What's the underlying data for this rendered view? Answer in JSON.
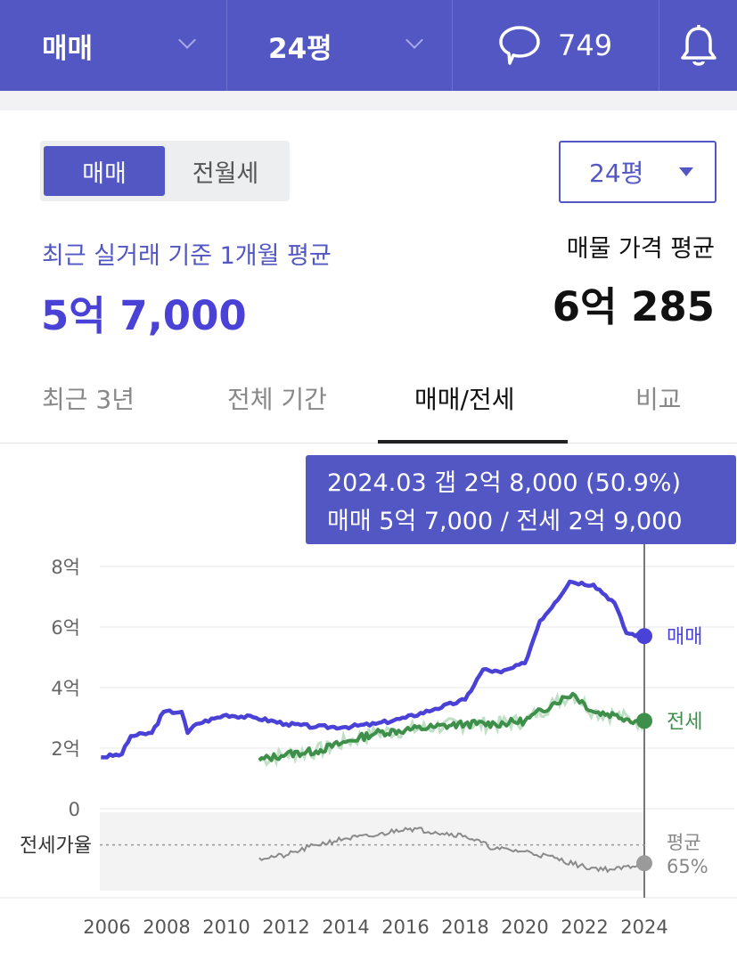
{
  "topbar": {
    "deal_type": "매매",
    "size": "24평",
    "comment_count": "749"
  },
  "segment": {
    "options": [
      "매매",
      "전월세"
    ],
    "selected": "매매"
  },
  "size_select": {
    "value": "24평"
  },
  "summary": {
    "recent_label": "최근 실거래 기준 1개월 평균",
    "recent_value": "5억 7,000",
    "listing_label": "매물 가격 평균",
    "listing_value": "6억 285"
  },
  "tabs": [
    {
      "label": "최근 3년"
    },
    {
      "label": "전체 기간"
    },
    {
      "label": "매매/전세"
    },
    {
      "label": "비교"
    }
  ],
  "tooltip": {
    "line1": "2024.03  갭 2억 8,000 (50.9%)",
    "line2": "매매 5억 7,000 / 전세 2억 9,000"
  },
  "colors": {
    "brand": "#5257c4",
    "sale": "#4a42d6",
    "jeonse": "#3d8f4a",
    "ratio": "#8a8a8a"
  },
  "chart_data": {
    "type": "line",
    "y_unit": "억",
    "ylim": [
      0,
      8
    ],
    "y_ticks": [
      "8억",
      "6억",
      "4억",
      "2억",
      "0"
    ],
    "x_ticks": [
      "2006",
      "2008",
      "2010",
      "2012",
      "2014",
      "2016",
      "2018",
      "2020",
      "2022",
      "2024"
    ],
    "xlim": [
      2006,
      2024.2
    ],
    "series": [
      {
        "name": "매매",
        "points": [
          [
            2005.8,
            1.7
          ],
          [
            2006.5,
            1.8
          ],
          [
            2006.8,
            2.4
          ],
          [
            2007.5,
            2.5
          ],
          [
            2007.9,
            3.2
          ],
          [
            2008.5,
            3.2
          ],
          [
            2008.7,
            2.5
          ],
          [
            2009.0,
            2.8
          ],
          [
            2010.0,
            3.1
          ],
          [
            2011.0,
            3.0
          ],
          [
            2012.0,
            2.8
          ],
          [
            2013.0,
            2.7
          ],
          [
            2014.0,
            2.7
          ],
          [
            2015.0,
            2.8
          ],
          [
            2016.0,
            3.0
          ],
          [
            2017.0,
            3.3
          ],
          [
            2018.0,
            3.6
          ],
          [
            2018.6,
            4.6
          ],
          [
            2019.2,
            4.5
          ],
          [
            2020.0,
            4.8
          ],
          [
            2020.5,
            6.2
          ],
          [
            2021.0,
            6.8
          ],
          [
            2021.5,
            7.5
          ],
          [
            2022.3,
            7.4
          ],
          [
            2023.0,
            6.8
          ],
          [
            2023.4,
            5.8
          ],
          [
            2024.0,
            5.7
          ]
        ]
      },
      {
        "name": "전세",
        "points": [
          [
            2011.1,
            1.6
          ],
          [
            2012.0,
            1.8
          ],
          [
            2013.0,
            1.9
          ],
          [
            2014.0,
            2.2
          ],
          [
            2015.0,
            2.5
          ],
          [
            2016.0,
            2.6
          ],
          [
            2017.0,
            2.7
          ],
          [
            2018.0,
            2.8
          ],
          [
            2019.0,
            2.8
          ],
          [
            2020.0,
            2.9
          ],
          [
            2021.0,
            3.5
          ],
          [
            2021.6,
            3.8
          ],
          [
            2022.3,
            3.2
          ],
          [
            2023.0,
            3.1
          ],
          [
            2023.7,
            2.9
          ],
          [
            2024.0,
            2.9
          ]
        ]
      },
      {
        "name": "전세가율",
        "points": [
          [
            2011.1,
            55
          ],
          [
            2012.0,
            57
          ],
          [
            2013.0,
            65
          ],
          [
            2014.0,
            70
          ],
          [
            2015.0,
            72
          ],
          [
            2016.0,
            78
          ],
          [
            2017.0,
            75
          ],
          [
            2018.0,
            72
          ],
          [
            2019.0,
            62
          ],
          [
            2020.0,
            60
          ],
          [
            2021.0,
            55
          ],
          [
            2022.0,
            48
          ],
          [
            2023.0,
            46
          ],
          [
            2024.0,
            51
          ]
        ]
      }
    ],
    "labels": {
      "sale": "매매",
      "jeonse": "전세",
      "ratio_axis": "전세가율",
      "ratio_avg_label": "평균",
      "ratio_avg_value": "65%"
    }
  }
}
